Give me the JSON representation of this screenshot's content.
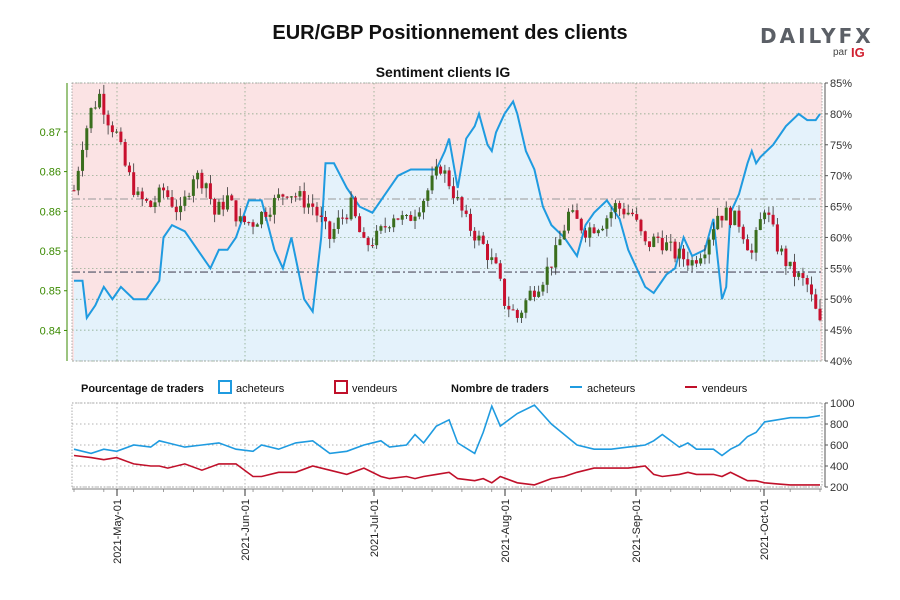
{
  "header": {
    "title": "EUR/GBP Positionnement des clients",
    "logo_text": "DAILYFX",
    "logo_sub": "par",
    "logo_ig": "IG"
  },
  "colors": {
    "buyers": "#1f9be0",
    "sellers": "#c0102a",
    "bull": "#3a6e1d",
    "bear": "#c8102e",
    "price_axis": "#3a8a00",
    "pink": "#fbe3e4",
    "lightblue": "#e4f2fb"
  },
  "legend": {
    "pct_title": "Pourcentage de traders",
    "pct_buyers": "acheteurs",
    "pct_sellers": "vendeurs",
    "count_title": "Nombre de traders",
    "count_buyers": "acheteurs",
    "count_sellers": "vendeurs"
  },
  "chart_data": [
    {
      "type": "candlestick+area",
      "title": "Sentiment clients IG",
      "y_left_ticks": [
        "0.87",
        "0.86",
        "0.86",
        "0.85",
        "0.85",
        "0.84"
      ],
      "y_left_range": [
        0.8385,
        0.8735
      ],
      "y_right_ticks": [
        "85%",
        "80%",
        "75%",
        "70%",
        "65%",
        "60%",
        "55%",
        "50%",
        "45%",
        "40%"
      ],
      "y_right_range": [
        40,
        85
      ],
      "reference_lines": [
        0.8589,
        0.8497
      ],
      "price": {
        "t": [
          0,
          2,
          4,
          6,
          8,
          10,
          12,
          15,
          18,
          21,
          25,
          28,
          31,
          33,
          36,
          39,
          42,
          46,
          50,
          53,
          56,
          60,
          62,
          65,
          68,
          71,
          75,
          78,
          82,
          86,
          88,
          92,
          96,
          99,
          101,
          104,
          107,
          110,
          113,
          116,
          120,
          124,
          127,
          131,
          134,
          137,
          141,
          145,
          148,
          151,
          153,
          156,
          159,
          162,
          165,
          168,
          172,
          175
        ],
        "close": [
          0.86,
          0.866,
          0.87,
          0.872,
          0.869,
          0.867,
          0.863,
          0.859,
          0.858,
          0.86,
          0.857,
          0.862,
          0.861,
          0.857,
          0.859,
          0.856,
          0.856,
          0.858,
          0.86,
          0.859,
          0.858,
          0.854,
          0.856,
          0.858,
          0.853,
          0.854,
          0.857,
          0.856,
          0.859,
          0.863,
          0.861,
          0.856,
          0.853,
          0.85,
          0.846,
          0.844,
          0.847,
          0.849,
          0.852,
          0.857,
          0.855,
          0.856,
          0.858,
          0.857,
          0.853,
          0.854,
          0.852,
          0.851,
          0.853,
          0.857,
          0.857,
          0.856,
          0.852,
          0.858,
          0.853,
          0.85,
          0.848,
          0.843
        ]
      },
      "buyers_pct": {
        "t": [
          0,
          2,
          3,
          5,
          7,
          9,
          11,
          14,
          17,
          20,
          21,
          23,
          26,
          29,
          32,
          34,
          36,
          38,
          41,
          44,
          47,
          49,
          51,
          54,
          56,
          58,
          59,
          61,
          64,
          67,
          70,
          73,
          76,
          79,
          82,
          85,
          87,
          88,
          90,
          92,
          94,
          95,
          97,
          98,
          99,
          101,
          103,
          104,
          106,
          108,
          110,
          112,
          115,
          118,
          120,
          122,
          125,
          128,
          130,
          132,
          134,
          136,
          139,
          141,
          143,
          145,
          148,
          150,
          152,
          153,
          154,
          156,
          158,
          159,
          160,
          161,
          164,
          167,
          170,
          172,
          174,
          175
        ],
        "values": [
          53,
          53,
          47,
          49,
          52,
          50,
          52,
          50,
          50,
          53,
          60,
          62,
          61,
          58,
          55,
          58,
          58,
          60,
          66,
          66,
          58,
          55,
          60,
          50,
          48,
          60,
          72,
          72,
          68,
          65,
          64,
          67,
          70,
          71,
          71,
          71,
          74,
          76,
          68,
          76,
          78,
          80,
          75,
          74,
          77,
          80,
          82,
          80,
          74,
          71,
          65,
          62,
          60,
          57,
          62,
          64,
          66,
          63,
          58,
          55,
          52,
          51,
          54,
          55,
          60,
          57,
          58,
          63,
          50,
          52,
          64,
          67,
          72,
          74,
          72,
          73,
          75,
          78,
          80,
          79,
          79,
          80
        ]
      },
      "sellers_pct": {
        "t": [
          2,
          3,
          5,
          7,
          9,
          11,
          14,
          17,
          20,
          21,
          23,
          26,
          29,
          32,
          34,
          36,
          38,
          41,
          44,
          47,
          49,
          51,
          54,
          56,
          58,
          59,
          61,
          64,
          67,
          70,
          73,
          76,
          79,
          82,
          85,
          87,
          88,
          90,
          92,
          94,
          95,
          97,
          98,
          99,
          101,
          103,
          104,
          106,
          108,
          110,
          112,
          115,
          118,
          120,
          122,
          125,
          128,
          130,
          132,
          134,
          136,
          139,
          141,
          143,
          145,
          148,
          150,
          152,
          153,
          154,
          156,
          158,
          159,
          160,
          161,
          164,
          167,
          170,
          172,
          174,
          175
        ],
        "values": [
          47,
          51,
          48,
          50,
          48,
          50,
          50,
          50,
          47,
          40,
          38,
          39,
          42,
          45,
          42,
          42,
          40,
          34,
          34,
          42,
          45,
          40,
          50,
          52,
          40,
          28,
          28,
          32,
          35,
          36,
          33,
          30,
          29,
          29,
          29,
          26,
          24,
          32,
          24,
          22,
          20,
          25,
          26,
          23,
          20,
          18,
          20,
          26,
          29,
          35,
          38,
          40,
          43,
          38,
          36,
          34,
          37,
          42,
          45,
          48,
          49,
          46,
          45,
          40,
          43,
          42,
          37,
          50,
          48,
          36,
          33,
          28,
          26,
          28,
          27,
          25,
          22,
          20,
          21,
          21,
          20
        ]
      },
      "x_dates": [
        "2021-May-01",
        "2021-Jun-01",
        "2021-Jul-01",
        "2021-Aug-01",
        "2021-Sep-01",
        "2021-Oct-01"
      ]
    },
    {
      "type": "line",
      "y_ticks": [
        "1000",
        "800",
        "600",
        "400",
        "200"
      ],
      "y_range": [
        200,
        1000
      ],
      "series": [
        {
          "name": "acheteurs",
          "t": [
            0,
            4,
            7,
            10,
            14,
            18,
            20,
            22,
            26,
            30,
            34,
            38,
            42,
            44,
            48,
            52,
            56,
            60,
            64,
            68,
            72,
            74,
            78,
            80,
            82,
            85,
            88,
            90,
            94,
            96,
            98,
            100,
            104,
            108,
            112,
            115,
            118,
            122,
            126,
            130,
            134,
            136,
            138,
            142,
            144,
            146,
            150,
            152,
            154,
            156,
            158,
            160,
            162,
            165,
            168,
            172,
            175
          ],
          "values": [
            560,
            520,
            560,
            540,
            600,
            580,
            640,
            620,
            580,
            600,
            620,
            560,
            540,
            600,
            560,
            620,
            640,
            520,
            540,
            600,
            640,
            580,
            600,
            700,
            620,
            780,
            840,
            620,
            520,
            720,
            970,
            780,
            900,
            980,
            800,
            700,
            600,
            560,
            560,
            580,
            600,
            640,
            700,
            580,
            620,
            560,
            560,
            500,
            560,
            600,
            680,
            720,
            820,
            840,
            860,
            860,
            880
          ]
        },
        {
          "name": "vendeurs",
          "t": [
            0,
            4,
            7,
            10,
            14,
            18,
            20,
            22,
            26,
            30,
            34,
            38,
            42,
            44,
            48,
            52,
            56,
            60,
            64,
            68,
            72,
            74,
            78,
            80,
            82,
            85,
            88,
            90,
            94,
            96,
            98,
            100,
            104,
            108,
            112,
            115,
            118,
            122,
            126,
            130,
            134,
            136,
            138,
            142,
            144,
            146,
            150,
            152,
            154,
            156,
            158,
            160,
            162,
            165,
            168,
            172,
            175
          ],
          "values": [
            500,
            480,
            460,
            480,
            420,
            400,
            400,
            380,
            420,
            360,
            420,
            420,
            300,
            300,
            340,
            340,
            400,
            360,
            320,
            380,
            300,
            280,
            300,
            280,
            300,
            320,
            340,
            280,
            260,
            280,
            240,
            300,
            240,
            220,
            280,
            300,
            340,
            380,
            380,
            380,
            400,
            320,
            300,
            320,
            340,
            320,
            320,
            300,
            340,
            300,
            260,
            260,
            240,
            230,
            220,
            220,
            220
          ]
        }
      ]
    }
  ]
}
